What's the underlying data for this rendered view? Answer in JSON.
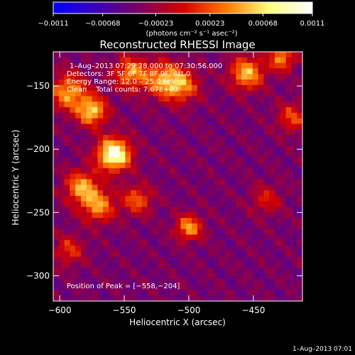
{
  "chart_data": {
    "type": "heatmap",
    "title": "Reconstructed RHESSI Image",
    "xlabel": "Heliocentric X (arcsec)",
    "ylabel": "Heliocentric Y (arcsec)",
    "xlim": [
      -605,
      -412
    ],
    "ylim": [
      -320,
      -123
    ],
    "x_ticks": [
      -600,
      -550,
      -500,
      -450
    ],
    "x_tick_labels": [
      "−600",
      "−550",
      "−500",
      "−450"
    ],
    "y_ticks": [
      -150,
      -200,
      -250,
      -300
    ],
    "y_tick_labels": [
      "−150",
      "−200",
      "−250",
      "−300"
    ],
    "colorbar": {
      "range": [
        -0.0011,
        0.0011
      ],
      "ticks": [
        -0.0011,
        -0.00068,
        -0.00023,
        0.00023,
        0.00068,
        0.0011
      ],
      "tick_labels": [
        "−0.0011",
        "−0.00068",
        "−0.00023",
        "0.00023",
        "0.00068",
        "0.0011"
      ],
      "units": "(photons cm⁻² s⁻¹ asec⁻²)",
      "colors": [
        "#0000ff",
        "#3a00b8",
        "#7a0060",
        "#d30000",
        "#ff7a00",
        "#ffff80",
        "#ffffff"
      ]
    },
    "annotations": [
      "1–Aug–2013 07:29:28.000 to 07:30:56.000",
      "Detectors: 3F 5F 6F 7F 8F 9F, Att 0",
      "Energy Range: 12.0 – 25.0 keV",
      "Clean    Total counts: 7.67E+03"
    ],
    "peak_label": "Position of Peak = [−558,−204]",
    "peak": [
      -558,
      -204
    ],
    "sources": [
      {
        "x": -558,
        "y": -204,
        "peak": 1.0,
        "sigma": 9
      },
      {
        "x": -575,
        "y": -170,
        "peak": 0.7,
        "sigma": 8
      },
      {
        "x": -593,
        "y": -155,
        "peak": 0.6,
        "sigma": 10
      },
      {
        "x": -545,
        "y": -140,
        "peak": 0.55,
        "sigma": 9
      },
      {
        "x": -520,
        "y": -145,
        "peak": 0.55,
        "sigma": 10
      },
      {
        "x": -505,
        "y": -150,
        "peak": 0.5,
        "sigma": 9
      },
      {
        "x": -583,
        "y": -230,
        "peak": 0.6,
        "sigma": 9
      },
      {
        "x": -570,
        "y": -245,
        "peak": 0.55,
        "sigma": 9
      },
      {
        "x": -540,
        "y": -240,
        "peak": 0.45,
        "sigma": 8
      },
      {
        "x": -500,
        "y": -262,
        "peak": 0.6,
        "sigma": 7
      },
      {
        "x": -455,
        "y": -140,
        "peak": 0.65,
        "sigma": 9
      },
      {
        "x": -428,
        "y": -128,
        "peak": 0.55,
        "sigma": 7
      },
      {
        "x": -420,
        "y": -175,
        "peak": 0.4,
        "sigma": 8
      },
      {
        "x": -440,
        "y": -240,
        "peak": 0.3,
        "sigma": 8
      },
      {
        "x": -593,
        "y": -280,
        "peak": 0.35,
        "sigma": 8
      }
    ],
    "background_level": -0.35
  },
  "footer": {
    "timestamp": "1–Aug–2013 07:01"
  }
}
